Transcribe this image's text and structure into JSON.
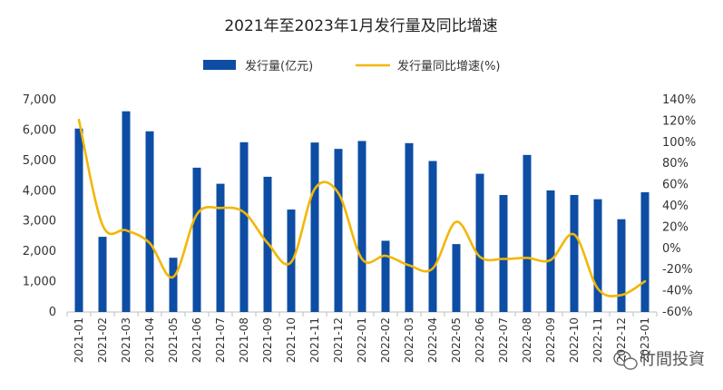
{
  "chart_data": {
    "type": "bar",
    "title": "2021年至2023年1月发行量及同比增速",
    "categories": [
      "2021-01",
      "2021-02",
      "2021-03",
      "2021-04",
      "2021-05",
      "2021-06",
      "2021-07",
      "2021-08",
      "2021-09",
      "2021-10",
      "2021-11",
      "2021-12",
      "2022-01",
      "2022-02",
      "2022-03",
      "2022-04",
      "2022-05",
      "2022-06",
      "2022-07",
      "2022-08",
      "2022-09",
      "2022-10",
      "2022-11",
      "2022-12",
      "2023-01"
    ],
    "series": [
      {
        "name": "发行量(亿元)",
        "type": "bar",
        "axis": "left",
        "color": "#0E4DA4",
        "values": [
          6050,
          2480,
          6620,
          5960,
          1790,
          4760,
          4230,
          5600,
          4460,
          3380,
          5590,
          5380,
          5640,
          2350,
          5570,
          4980,
          2240,
          4560,
          3860,
          5180,
          4010,
          3860,
          3720,
          3060,
          3950
        ]
      },
      {
        "name": "发行量同比增速(%)",
        "type": "line",
        "axis": "right",
        "color": "#F2B705",
        "values": [
          121,
          22,
          17,
          5,
          -27,
          32,
          38,
          34,
          5,
          -13,
          56,
          52,
          -10,
          -7,
          -16,
          -19,
          25,
          -8,
          -10,
          -9,
          -11,
          13,
          -38,
          -44,
          -31
        ]
      }
    ],
    "yleft": {
      "ylim": [
        0,
        7000
      ],
      "ticks": [
        "0",
        "1,000",
        "2,000",
        "3,000",
        "4,000",
        "5,000",
        "6,000",
        "7,000"
      ]
    },
    "yright": {
      "ylim": [
        -60,
        140
      ],
      "ticks": [
        "-60%",
        "-40%",
        "-20%",
        "0%",
        "20%",
        "40%",
        "60%",
        "80%",
        "100%",
        "120%",
        "140%"
      ]
    },
    "legend_position": "top-center",
    "grid": false
  },
  "watermark": {
    "text": "竹間投資",
    "icon": "wechat-icon"
  }
}
